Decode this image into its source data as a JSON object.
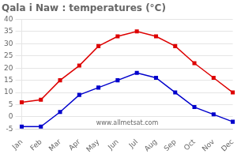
{
  "chart_data": {
    "type": "line",
    "title": "Qala i Naw : temperatures (°C)",
    "categories": [
      "Jan",
      "Feb",
      "Mar",
      "Apr",
      "May",
      "Jun",
      "Jul",
      "Aug",
      "Sep",
      "Oct",
      "Nov",
      "Dec"
    ],
    "series": [
      {
        "color": "#dd0000",
        "marker": "square",
        "values": [
          6,
          7,
          15,
          21,
          29,
          33,
          35,
          33,
          29,
          22,
          16,
          10
        ]
      },
      {
        "color": "#0000cc",
        "marker": "square",
        "values": [
          -4,
          -4,
          2,
          9,
          12,
          15,
          18,
          16,
          10,
          4,
          1,
          -2
        ]
      }
    ],
    "ylim": [
      -5,
      40
    ],
    "yticks": [
      -5,
      0,
      5,
      10,
      15,
      20,
      25,
      30,
      35,
      40
    ],
    "grid": true,
    "annotations": [
      "www.allmetsat.com"
    ]
  }
}
